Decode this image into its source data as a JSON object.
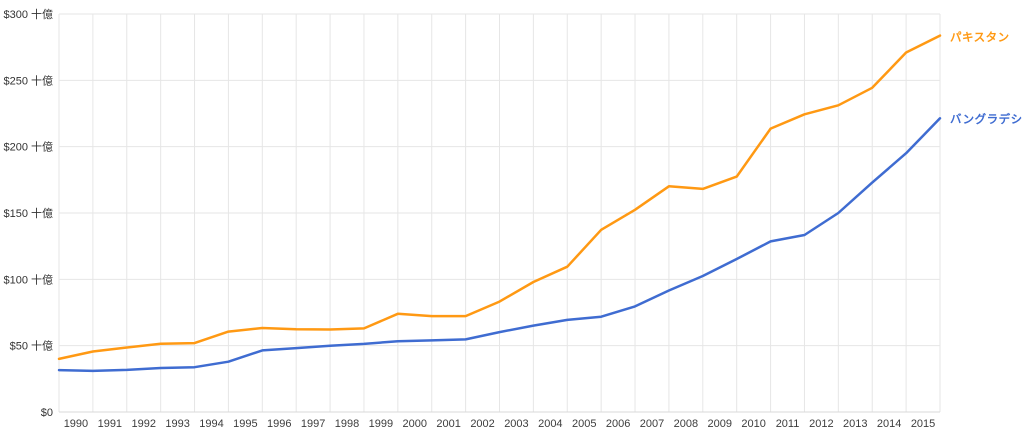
{
  "chart_data": {
    "type": "line",
    "title": "",
    "unit_suffix": "十億",
    "currency_prefix": "$",
    "x": [
      1990,
      1991,
      1992,
      1993,
      1994,
      1995,
      1996,
      1997,
      1998,
      1999,
      2000,
      2001,
      2002,
      2003,
      2004,
      2005,
      2006,
      2007,
      2008,
      2009,
      2010,
      2011,
      2012,
      2013,
      2014,
      2015,
      2016
    ],
    "x_tick_labels": [
      "1990",
      "1991",
      "1992",
      "1993",
      "1994",
      "1995",
      "1996",
      "1997",
      "1998",
      "1999",
      "2000",
      "2001",
      "2002",
      "2003",
      "2004",
      "2005",
      "2006",
      "2007",
      "2008",
      "2009",
      "2010",
      "2011",
      "2012",
      "2013",
      "2014",
      "2015"
    ],
    "series": [
      {
        "name": "パキスタン",
        "color": "#ff9913",
        "values": [
          40.0,
          45.6,
          48.6,
          51.5,
          51.9,
          60.6,
          63.3,
          62.4,
          62.2,
          63.0,
          74.0,
          72.3,
          72.3,
          83.2,
          98.0,
          109.5,
          137.3,
          152.4,
          170.1,
          168.2,
          177.4,
          213.6,
          224.4,
          231.2,
          244.4,
          271.0,
          283.7
        ]
      },
      {
        "name": "バングラデシュ",
        "color": "#3f6cd1",
        "values": [
          31.6,
          31.0,
          31.7,
          33.2,
          33.8,
          37.9,
          46.4,
          48.2,
          50.0,
          51.3,
          53.4,
          54.0,
          54.7,
          60.2,
          65.1,
          69.4,
          71.8,
          79.6,
          91.6,
          102.5,
          115.3,
          128.6,
          133.4,
          150.0,
          172.9,
          195.1,
          221.4
        ]
      }
    ],
    "y_ticks": [
      {
        "value": 0,
        "label": "$0"
      },
      {
        "value": 50,
        "label": "$50 十億"
      },
      {
        "value": 100,
        "label": "$100 十億"
      },
      {
        "value": 150,
        "label": "$150 十億"
      },
      {
        "value": 200,
        "label": "$200 十億"
      },
      {
        "value": 250,
        "label": "$250 十億"
      },
      {
        "value": 300,
        "label": "$300 十億"
      }
    ],
    "ylim": [
      0,
      300
    ],
    "grid": "both",
    "grid_color": "#e6e6e6",
    "baseline_color": "#d9d9d9",
    "legend_position": "line-end-labels"
  }
}
